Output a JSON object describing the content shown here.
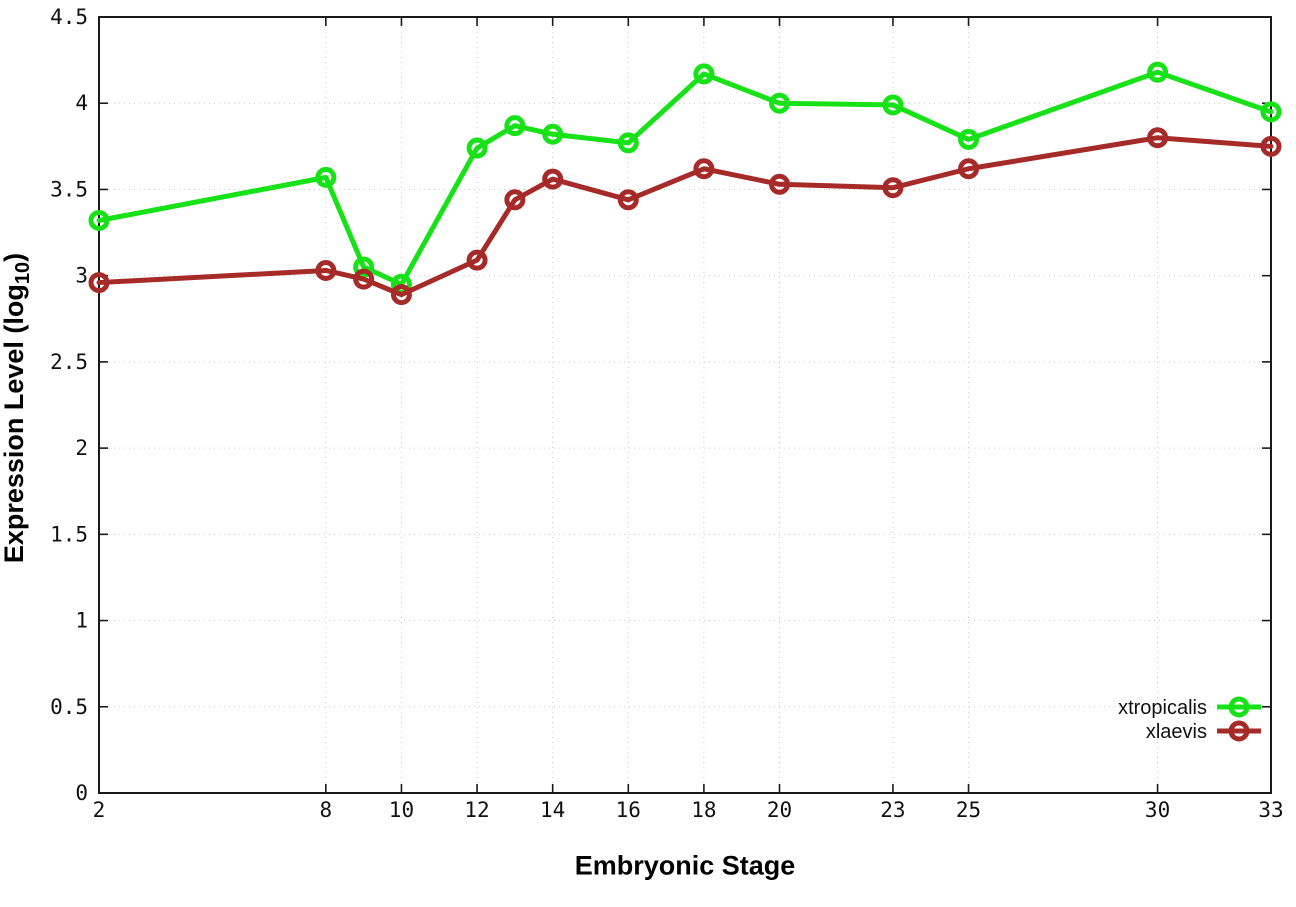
{
  "chart_data": {
    "type": "line",
    "title": "",
    "xlabel": "Embryonic Stage",
    "ylabel_prefix": "Expression Level (log",
    "ylabel_sub": "10",
    "ylabel_suffix": ")",
    "x": [
      2,
      8,
      9,
      10,
      12,
      13,
      14,
      16,
      18,
      20,
      23,
      25,
      30,
      33
    ],
    "series": [
      {
        "name": "xtropicalis",
        "color": "#17e117",
        "values": [
          3.32,
          3.57,
          3.05,
          2.95,
          3.74,
          3.87,
          3.82,
          3.77,
          4.17,
          4.0,
          3.99,
          3.79,
          4.18,
          3.95
        ]
      },
      {
        "name": "xlaevis",
        "color": "#a62b28",
        "values": [
          2.96,
          3.03,
          2.98,
          2.89,
          3.09,
          3.44,
          3.56,
          3.44,
          3.62,
          3.53,
          3.51,
          3.62,
          3.8,
          3.75
        ]
      }
    ],
    "x_ticks": [
      2,
      8,
      10,
      12,
      14,
      16,
      18,
      20,
      23,
      25,
      30,
      33
    ],
    "y_ticks": [
      0,
      0.5,
      1,
      1.5,
      2,
      2.5,
      3,
      3.5,
      4,
      4.5
    ],
    "xlim": [
      2,
      33
    ],
    "ylim": [
      0,
      4.5
    ],
    "grid": true,
    "legend_position": "bottom-right",
    "marker": "open-circle",
    "background_color": "#ffffff",
    "grid_color": "#c9c9c9",
    "axis_color": "#1a1a1a"
  }
}
